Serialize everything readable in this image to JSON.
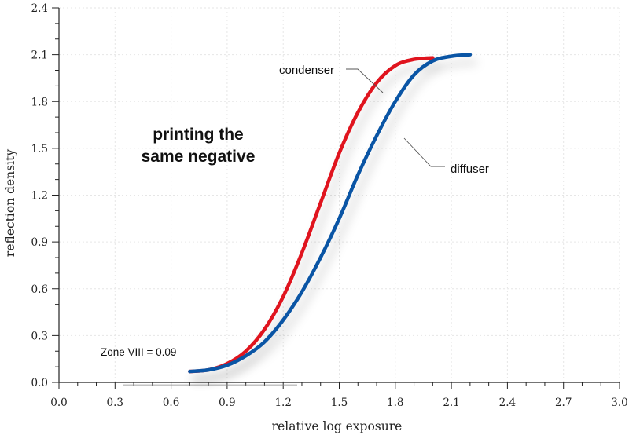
{
  "chart_data": {
    "type": "line",
    "xlabel": "relative log exposure",
    "ylabel": "reflection density",
    "xlim": [
      0.0,
      3.0
    ],
    "ylim": [
      0.0,
      2.4
    ],
    "x_ticks": [
      "0.0",
      "0.3",
      "0.6",
      "0.9",
      "1.2",
      "1.5",
      "1.8",
      "2.1",
      "2.4",
      "2.7",
      "3.0"
    ],
    "y_ticks": [
      "0.0",
      "0.3",
      "0.6",
      "0.9",
      "1.2",
      "1.5",
      "1.8",
      "2.1",
      "2.4"
    ],
    "grid": true,
    "series": [
      {
        "name": "condenser",
        "color": "#e0141e",
        "x": [
          0.7,
          0.8,
          0.9,
          1.0,
          1.1,
          1.2,
          1.3,
          1.4,
          1.5,
          1.6,
          1.7,
          1.8,
          1.9,
          2.0
        ],
        "y": [
          0.07,
          0.08,
          0.12,
          0.2,
          0.34,
          0.55,
          0.83,
          1.15,
          1.47,
          1.73,
          1.92,
          2.03,
          2.07,
          2.08
        ]
      },
      {
        "name": "diffuser",
        "color": "#0a55a5",
        "x": [
          0.7,
          0.8,
          0.9,
          1.0,
          1.1,
          1.2,
          1.3,
          1.4,
          1.5,
          1.6,
          1.7,
          1.8,
          1.9,
          2.0,
          2.1,
          2.2
        ],
        "y": [
          0.07,
          0.08,
          0.11,
          0.17,
          0.26,
          0.4,
          0.58,
          0.8,
          1.05,
          1.33,
          1.58,
          1.8,
          1.97,
          2.06,
          2.09,
          2.1
        ]
      }
    ],
    "annotations": {
      "headline_line1": "printing the",
      "headline_line2": "same negative",
      "zone_note": "Zone VIII = 0.09",
      "zone_value": 0.09,
      "condenser_label": "condenser",
      "diffuser_label": "diffuser"
    }
  }
}
